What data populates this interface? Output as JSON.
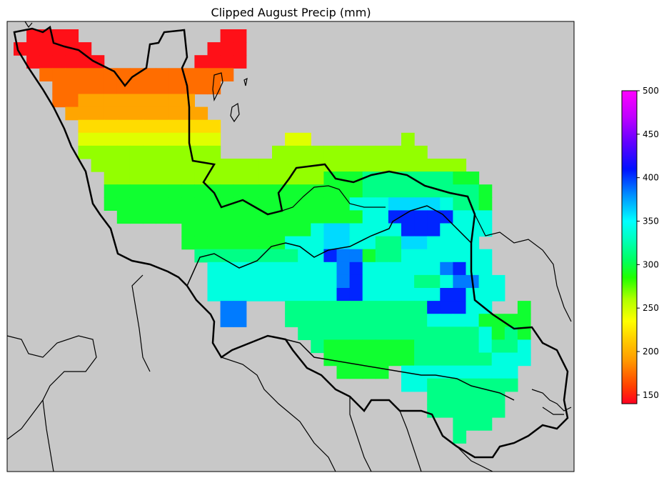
{
  "chart_data": {
    "type": "heatmap",
    "title": "Clipped August Precip (mm)",
    "xlabel": "",
    "ylabel": "",
    "colormap": "gist_rainbow (red → magenta)",
    "background_color": "#c8c8c8",
    "colorbar": {
      "range": [
        140,
        500
      ],
      "ticks": [
        150,
        200,
        250,
        300,
        350,
        400,
        450,
        500
      ],
      "gradient": [
        {
          "value": 140,
          "color": "#ff0020"
        },
        {
          "value": 160,
          "color": "#ff4000"
        },
        {
          "value": 190,
          "color": "#ff9a00"
        },
        {
          "value": 215,
          "color": "#ffd000"
        },
        {
          "value": 235,
          "color": "#ffff00"
        },
        {
          "value": 260,
          "color": "#b0ff00"
        },
        {
          "value": 285,
          "color": "#20ff00"
        },
        {
          "value": 305,
          "color": "#00ff60"
        },
        {
          "value": 330,
          "color": "#00ffc0"
        },
        {
          "value": 350,
          "color": "#00ffff"
        },
        {
          "value": 380,
          "color": "#0090ff"
        },
        {
          "value": 410,
          "color": "#0010ff"
        },
        {
          "value": 440,
          "color": "#6000ff"
        },
        {
          "value": 470,
          "color": "#c000ff"
        },
        {
          "value": 500,
          "color": "#ff00ff"
        }
      ]
    },
    "grid": {
      "rows": [
        "_rrrr___________rr_______________________",
        "rrrrrr_________rrr_______________________",
        "_rrrrrr_______rrrr_______________________",
        "__ooooooooooooooo________________________",
        "___ooooooooooooo_________________________",
        "___ooOOOOOOOOO___________________________",
        "____OOOOOOOOOOO__________________________",
        "_____YYYYYYYYYYY_________________________",
        "_____yyyyyyyyyyy_____yy_______h__________",
        "_____hhhhhhhhhhh____hhhhhhhhhhhh_________",
        "______hhhhhhhhhhhhhhhhhhhhhhhhhhhhh______",
        "_______hhhhhhhhhhhhhhhhhgggtttttttgg_____",
        "_______ggggggggggggggggggggtttttttttg____",
        "_______gggggggggggggggggggcccCCCCcttg____",
        "________gggggggggggggggggggccBBBBBccc____",
        "_____________ggggggggggcCCccccBBBcccc____",
        "_____________ggggggggcccCCccttCCcccc_____",
        "______________ttttttttccBbbgttccccccc____",
        "_______________ccccccccccbBccccccbBcc____",
        "_______________ccccccccccbBccccttcbbcc___",
        "_______________ccccccccccBBccccccBBccc___",
        "________________bb___tttttttttttBBBcc__g_",
        "________________bb___tttttttttttccccgggg_",
        "______________________ttttttttttttttcgtg_",
        "_______________________tgggggggtttttcttc_",
        "________________________gggggggttttttccc_",
        "_________________________gggg_ccccccccc__",
        "______________________________ccttttttt__",
        "________________________________tttttt___",
        "________________________________tttttt___",
        "__________________________________ttt____",
        "__________________________________t______"
      ],
      "legend": {
        "r": 145,
        "o": 175,
        "O": 195,
        "Y": 220,
        "y": 245,
        "h": 265,
        "g": 295,
        "t": 315,
        "c": 340,
        "C": 360,
        "b": 385,
        "B": 405
      }
    }
  }
}
